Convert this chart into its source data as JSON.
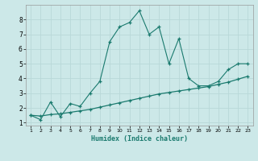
{
  "x": [
    1,
    2,
    3,
    4,
    5,
    6,
    7,
    8,
    9,
    10,
    11,
    12,
    13,
    14,
    15,
    16,
    17,
    18,
    19,
    20,
    21,
    22,
    23
  ],
  "series1": [
    1.5,
    1.2,
    2.4,
    1.4,
    2.3,
    2.1,
    3.0,
    3.8,
    6.5,
    7.5,
    7.8,
    8.6,
    7.0,
    7.5,
    5.0,
    6.7,
    4.0,
    3.5,
    3.5,
    3.8,
    4.6,
    5.0,
    5.0
  ],
  "series2": [
    1.5,
    1.45,
    1.55,
    1.6,
    1.7,
    1.8,
    1.9,
    2.05,
    2.2,
    2.35,
    2.5,
    2.65,
    2.8,
    2.95,
    3.05,
    3.15,
    3.25,
    3.35,
    3.45,
    3.6,
    3.75,
    3.95,
    4.15
  ],
  "line_color": "#1a7a6e",
  "bg_color": "#cce8e8",
  "grid_color": "#b0d8d8",
  "xlabel": "Humidex (Indice chaleur)",
  "xlim_min": 0.5,
  "xlim_max": 23.5,
  "ylim_min": 0.8,
  "ylim_max": 9.0,
  "xticks": [
    1,
    2,
    3,
    4,
    5,
    6,
    7,
    8,
    9,
    10,
    11,
    12,
    13,
    14,
    15,
    16,
    17,
    18,
    19,
    20,
    21,
    22,
    23
  ],
  "yticks": [
    1,
    2,
    3,
    4,
    5,
    6,
    7,
    8
  ]
}
